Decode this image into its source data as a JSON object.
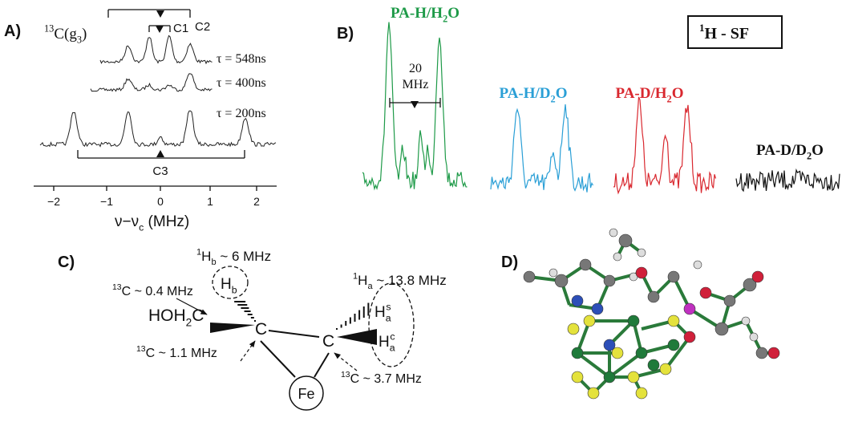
{
  "panel_a": {
    "label": "A)",
    "nucleus": [
      "13",
      "C(g",
      "3",
      ")"
    ],
    "c2": "C2",
    "c1": "C1",
    "c3": "C3",
    "traces": [
      "τ = 548ns",
      "τ = 400ns",
      "τ = 200ns"
    ],
    "x_ticks": [
      "−2",
      "−1",
      "0",
      "1",
      "2"
    ],
    "x_label": [
      "ν−ν",
      "c",
      " (MHz)"
    ]
  },
  "panel_b": {
    "label": "B)",
    "box": [
      "1",
      "H - SF"
    ],
    "samples": [
      [
        "PA-H/H",
        "2",
        "O"
      ],
      [
        "PA-H/D",
        "2",
        "O"
      ],
      [
        "PA-D/H",
        "2",
        "O"
      ],
      [
        "PA-D/D",
        "2",
        "O"
      ]
    ],
    "splitting": [
      "20",
      "MHz"
    ]
  },
  "panel_c": {
    "label": "C)",
    "hb": [
      "1",
      "H",
      "b",
      " ~ 6 MHz"
    ],
    "hb_atom": [
      "H",
      "b"
    ],
    "c_hoh": [
      "13",
      "C ~ 0.4 MHz"
    ],
    "hoh2c": [
      "HOH",
      "2",
      "C"
    ],
    "c_left": "C",
    "c_right": "C",
    "c_left_coupling": [
      "13",
      "C ~ 1.1 MHz"
    ],
    "ha": [
      "1",
      "H",
      "a",
      " ~ 13.8 MHz"
    ],
    "has": [
      "H",
      "a",
      "s"
    ],
    "hac": [
      "H",
      "a",
      "c"
    ],
    "c_right_coupling": [
      "13",
      "C ~ 3.7 MHz"
    ],
    "fe": "Fe"
  },
  "panel_d": {
    "label": "D)"
  }
}
